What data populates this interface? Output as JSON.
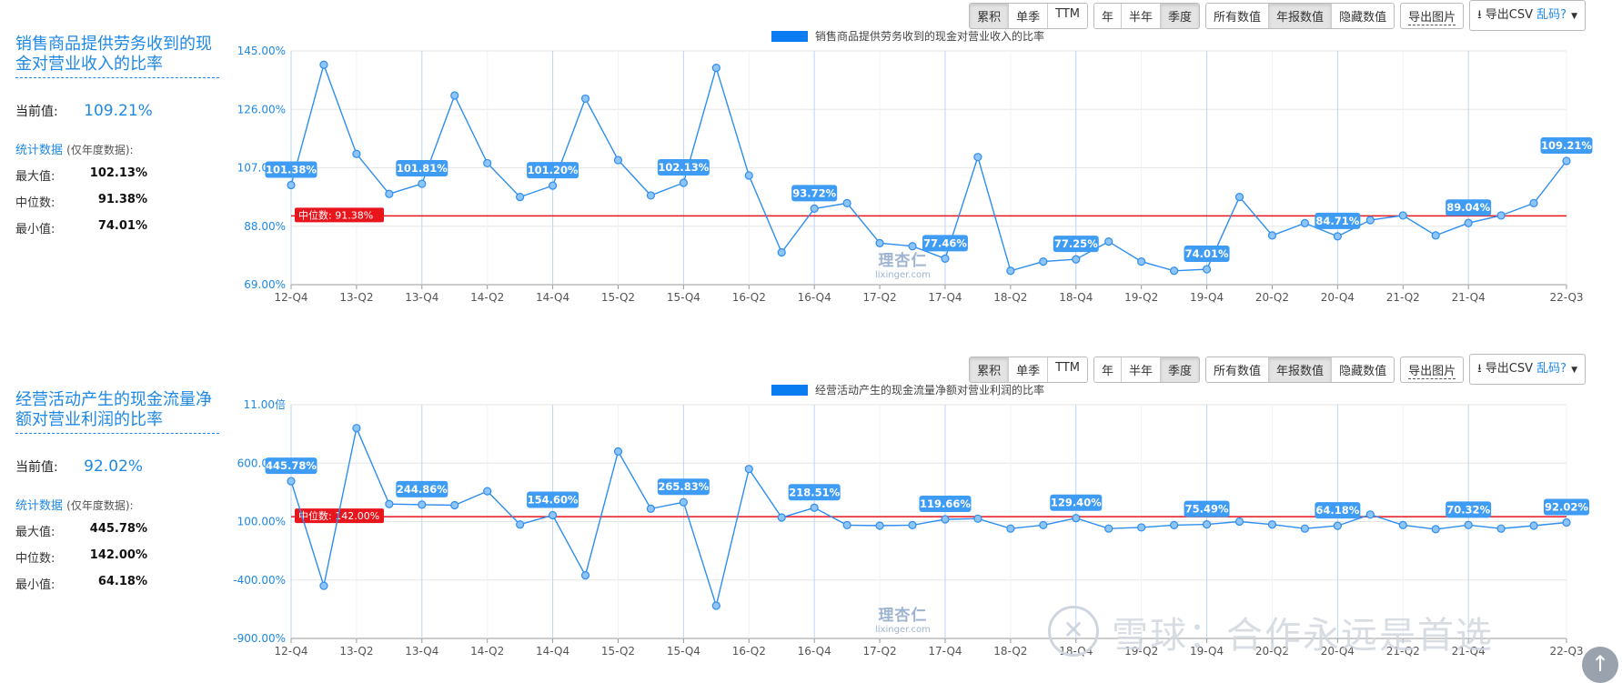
{
  "toolbar": {
    "groups": [
      [
        "累积",
        "单季",
        "TTM"
      ],
      [
        "年",
        "半年",
        "季度"
      ],
      [
        "所有数值",
        "年报数值",
        "隐藏数值"
      ]
    ],
    "active": [
      "累积",
      "季度",
      "年报数值"
    ],
    "export_image": "导出图片",
    "export_csv": "导出CSV",
    "garble": "乱码?"
  },
  "panel1": {
    "title": "销售商品提供劳务收到的现金对营业收入的比率",
    "current_label": "当前值:",
    "current_value": "109.21%",
    "stats_label": "统计数据",
    "stats_note": "(仅年度数据):",
    "max_label": "最大值:",
    "max_value": "102.13%",
    "median_label": "中位数:",
    "median_value": "91.38%",
    "min_label": "最小值:",
    "min_value": "74.01%"
  },
  "panel2": {
    "title": "经营活动产生的现金流量净额对营业利润的比率",
    "current_label": "当前值:",
    "current_value": "92.02%",
    "stats_label": "统计数据",
    "stats_note": "(仅年度数据):",
    "max_label": "最大值:",
    "max_value": "445.78%",
    "median_label": "中位数:",
    "median_value": "142.00%",
    "min_label": "最小值:",
    "min_value": "64.18%"
  },
  "watermark": {
    "site_cn": "理杏仁",
    "site_url": "lixinger.com",
    "xueqiu": "雪球：合作永远是首选"
  },
  "colors": {
    "line": "#2d8ef0",
    "median": "#e8151d",
    "label_bg": "#3f9cf5",
    "grid": "#b9d7f3"
  },
  "chart_data": [
    {
      "type": "line",
      "legend": "销售商品提供劳务收到的现金对营业收入的比率",
      "x": [
        "12-Q4",
        "13-Q1",
        "13-Q2",
        "13-Q3",
        "13-Q4",
        "14-Q1",
        "14-Q2",
        "14-Q3",
        "14-Q4",
        "15-Q1",
        "15-Q2",
        "15-Q3",
        "15-Q4",
        "16-Q1",
        "16-Q2",
        "16-Q3",
        "16-Q4",
        "17-Q1",
        "17-Q2",
        "17-Q3",
        "17-Q4",
        "18-Q1",
        "18-Q2",
        "18-Q3",
        "18-Q4",
        "19-Q1",
        "19-Q2",
        "19-Q3",
        "19-Q4",
        "20-Q1",
        "20-Q2",
        "20-Q3",
        "20-Q4",
        "21-Q1",
        "21-Q2",
        "21-Q3",
        "21-Q4",
        "22-Q1",
        "22-Q2",
        "22-Q3"
      ],
      "tick_labels": [
        "12-Q4",
        "13-Q2",
        "13-Q4",
        "14-Q2",
        "14-Q4",
        "15-Q2",
        "15-Q4",
        "16-Q2",
        "16-Q4",
        "17-Q2",
        "17-Q4",
        "18-Q2",
        "18-Q4",
        "19-Q2",
        "19-Q4",
        "20-Q2",
        "20-Q4",
        "21-Q2",
        "21-Q4",
        "22-Q3"
      ],
      "y": [
        101.38,
        140.5,
        111.5,
        98.5,
        101.81,
        130.5,
        108.5,
        97.5,
        101.2,
        129.5,
        109.5,
        98,
        102.13,
        139.5,
        104.5,
        79.5,
        93.72,
        95.5,
        82.5,
        81.5,
        77.46,
        110.5,
        73.5,
        76.5,
        77.25,
        83,
        76.5,
        73.5,
        74.01,
        97.5,
        85,
        89,
        84.71,
        90,
        91.5,
        85,
        89.04,
        91.5,
        95.5,
        109.21
      ],
      "labels": {
        "0": "101.38%",
        "4": "101.81%",
        "8": "101.20%",
        "12": "102.13%",
        "16": "93.72%",
        "20": "77.46%",
        "24": "77.25%",
        "28": "74.01%",
        "32": "84.71%",
        "36": "89.04%",
        "39": "109.21%"
      },
      "median": 91.38,
      "median_label": "中位数: 91.38%",
      "yticks": [
        "145.00%",
        "126.00%",
        "107.00%",
        "88.00%",
        "69.00%"
      ],
      "ylim": [
        69,
        145
      ],
      "grid": true,
      "legend_position": "top"
    },
    {
      "type": "line",
      "legend": "经营活动产生的现金流量净额对营业利润的比率",
      "x": [
        "12-Q4",
        "13-Q1",
        "13-Q2",
        "13-Q3",
        "13-Q4",
        "14-Q1",
        "14-Q2",
        "14-Q3",
        "14-Q4",
        "15-Q1",
        "15-Q2",
        "15-Q3",
        "15-Q4",
        "16-Q1",
        "16-Q2",
        "16-Q3",
        "16-Q4",
        "17-Q1",
        "17-Q2",
        "17-Q3",
        "17-Q4",
        "18-Q1",
        "18-Q2",
        "18-Q3",
        "18-Q4",
        "19-Q1",
        "19-Q2",
        "19-Q3",
        "19-Q4",
        "20-Q1",
        "20-Q2",
        "20-Q3",
        "20-Q4",
        "21-Q1",
        "21-Q2",
        "21-Q3",
        "21-Q4",
        "22-Q1",
        "22-Q2",
        "22-Q3"
      ],
      "tick_labels": [
        "12-Q4",
        "13-Q2",
        "13-Q4",
        "14-Q2",
        "14-Q4",
        "15-Q2",
        "15-Q4",
        "16-Q2",
        "16-Q4",
        "17-Q2",
        "17-Q4",
        "18-Q2",
        "18-Q4",
        "19-Q2",
        "19-Q4",
        "20-Q2",
        "20-Q4",
        "21-Q2",
        "21-Q4",
        "22-Q3"
      ],
      "y": [
        445.78,
        -450,
        900,
        250,
        244.86,
        240,
        360,
        75,
        154.6,
        -360,
        700,
        210,
        265.83,
        -620,
        550,
        135,
        218.51,
        70,
        65,
        70,
        119.66,
        125,
        40,
        70,
        129.4,
        40,
        50,
        70,
        75.49,
        100,
        75,
        40,
        64.18,
        160,
        70,
        35,
        70.32,
        40,
        65,
        92.02
      ],
      "labels": {
        "0": "445.78%",
        "4": "244.86%",
        "8": "154.60%",
        "12": "265.83%",
        "16": "218.51%",
        "20": "119.66%",
        "24": "129.40%",
        "28": "75.49%",
        "32": "64.18%",
        "36": "70.32%",
        "39": "92.02%"
      },
      "median": 142.0,
      "median_label": "中位数: 142.00%",
      "yticks": [
        "11.00倍",
        "600.00%",
        "100.00%",
        "-400.00%",
        "-900.00%"
      ],
      "ylim": [
        -900,
        1100
      ],
      "grid": true,
      "legend_position": "top"
    }
  ]
}
